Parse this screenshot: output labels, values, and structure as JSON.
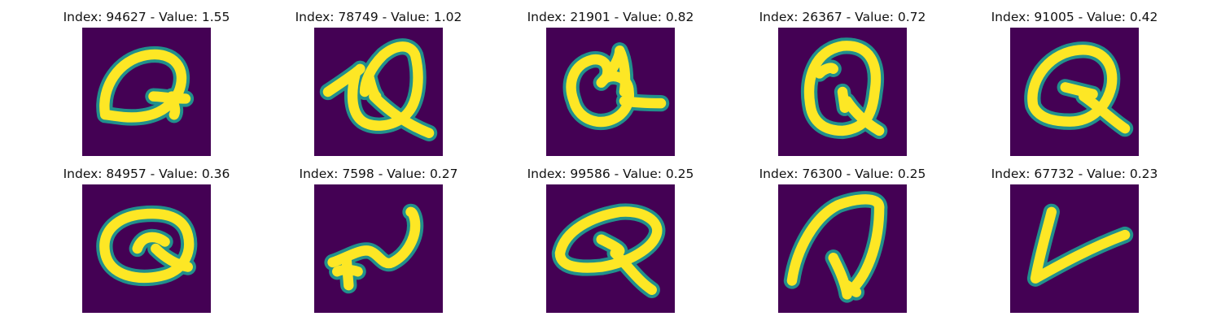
{
  "colors": {
    "background": "#440154",
    "edge": "#21908c",
    "mid": "#5ec962",
    "ink": "#fde725"
  },
  "panels": [
    {
      "index": "94627",
      "value": "1.55",
      "title": "Index: 94627 - Value: 1.55",
      "glyph": "Q-tilted"
    },
    {
      "index": "78749",
      "value": "1.02",
      "title": "Index: 78749 - Value: 1.02",
      "glyph": "Q-scribble"
    },
    {
      "index": "21901",
      "value": "0.82",
      "title": "Index: 21901 - Value: 0.82",
      "glyph": "Q-blob"
    },
    {
      "index": "26367",
      "value": "0.72",
      "title": "Index: 26367 - Value: 0.72",
      "glyph": "Q-tall"
    },
    {
      "index": "91005",
      "value": "0.42",
      "title": "Index: 91005 - Value: 0.42",
      "glyph": "Q-round"
    },
    {
      "index": "84957",
      "value": "0.36",
      "title": "Index: 84957 - Value: 0.36",
      "glyph": "Q-lemon"
    },
    {
      "index": "7598",
      "value": "0.27",
      "title": "Index: 7598 - Value: 0.27",
      "glyph": "squiggle"
    },
    {
      "index": "99586",
      "value": "0.25",
      "title": "Index: 99586 - Value: 0.25",
      "glyph": "Q-wide"
    },
    {
      "index": "76300",
      "value": "0.25",
      "title": "Index: 76300 - Value: 0.25",
      "glyph": "arch"
    },
    {
      "index": "67732",
      "value": "0.23",
      "title": "Index: 67732 - Value: 0.23",
      "glyph": "V"
    }
  ]
}
